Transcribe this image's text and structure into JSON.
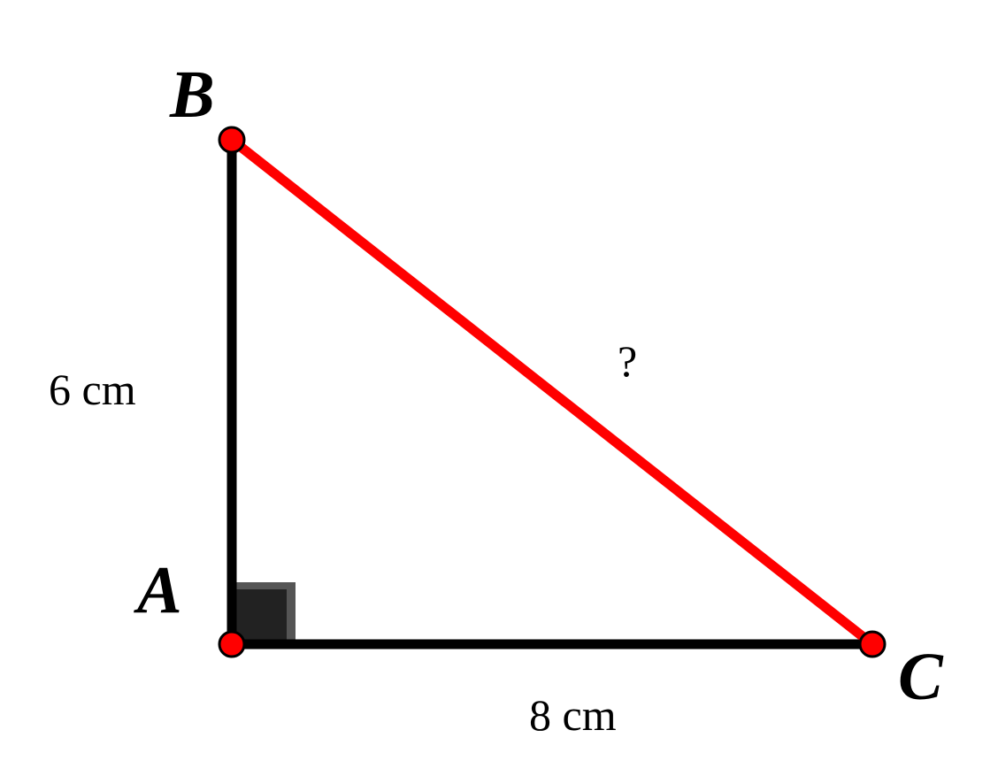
{
  "vertices": [
    {
      "label": "A"
    },
    {
      "label": "B"
    },
    {
      "label": "C"
    }
  ],
  "sides": [
    {
      "label": "6 cm"
    },
    {
      "label": "8 cm"
    },
    {
      "label": "?"
    }
  ]
}
